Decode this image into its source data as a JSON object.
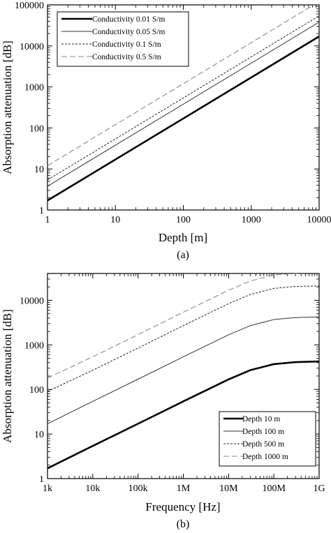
{
  "chart_data": [
    {
      "type": "line",
      "caption": "(a)",
      "xlabel": "Depth [m]",
      "ylabel": "Absorption attenuation [dB]",
      "x_scale": "log",
      "y_scale": "log",
      "xlim": [
        1,
        10000
      ],
      "ylim": [
        1,
        100000
      ],
      "x_ticks": [
        1,
        10,
        100,
        1000,
        10000
      ],
      "x_tick_labels": [
        "1",
        "10",
        "100",
        "1000",
        "10000"
      ],
      "y_ticks": [
        1,
        10,
        100,
        1000,
        10000,
        100000
      ],
      "y_tick_labels": [
        "1",
        "10",
        "100",
        "1000",
        "10000",
        "100000"
      ],
      "grid": false,
      "legend_position": "top-left",
      "series": [
        {
          "name": "Conductivity 0.01 S/m",
          "style": "thick-solid",
          "x": [
            1,
            10000
          ],
          "y": [
            1.7,
            17000
          ]
        },
        {
          "name": "Conductivity 0.05 S/m",
          "style": "thin-solid",
          "x": [
            1,
            10000
          ],
          "y": [
            3.8,
            38000
          ]
        },
        {
          "name": "Conductivity 0.1 S/m",
          "style": "short-dash",
          "x": [
            1,
            10000
          ],
          "y": [
            5.4,
            54000
          ]
        },
        {
          "name": "Conductivity 0.5 S/m",
          "style": "long-dash",
          "x": [
            1,
            10000
          ],
          "y": [
            12,
            120000
          ]
        }
      ]
    },
    {
      "type": "line",
      "caption": "(b)",
      "xlabel": "Frequency [Hz]",
      "ylabel": "Absorption attenuation [dB]",
      "x_scale": "log",
      "y_scale": "log",
      "xlim": [
        1000,
        1000000000
      ],
      "ylim": [
        1,
        40000
      ],
      "x_ticks": [
        1000,
        10000,
        100000,
        1000000,
        10000000,
        100000000,
        1000000000
      ],
      "x_tick_labels": [
        "1k",
        "10k",
        "100k",
        "1M",
        "10M",
        "100M",
        "1G"
      ],
      "y_ticks": [
        1,
        10,
        100,
        1000,
        10000
      ],
      "y_tick_labels": [
        "1",
        "10",
        "100",
        "1000",
        "10000"
      ],
      "grid": false,
      "legend_position": "bottom-right",
      "series": [
        {
          "name": "Depth 10 m",
          "style": "thick-solid",
          "x": [
            1000,
            10000,
            100000,
            1000000,
            10000000,
            30000000,
            100000000,
            300000000,
            1000000000
          ],
          "y": [
            1.7,
            5.4,
            17,
            54,
            168,
            270,
            370,
            410,
            425
          ]
        },
        {
          "name": "Depth 100 m",
          "style": "thin-solid",
          "x": [
            1000,
            10000,
            100000,
            1000000,
            10000000,
            30000000,
            100000000,
            300000000,
            1000000000
          ],
          "y": [
            17,
            54,
            170,
            540,
            1680,
            2700,
            3700,
            4100,
            4250
          ]
        },
        {
          "name": "Depth 500 m",
          "style": "short-dash",
          "x": [
            1000,
            10000,
            100000,
            1000000,
            10000000,
            30000000,
            100000000,
            300000000,
            1000000000
          ],
          "y": [
            90,
            270,
            850,
            2700,
            8400,
            13500,
            18500,
            20500,
            21000
          ]
        },
        {
          "name": "Depth 1000 m",
          "style": "long-dash",
          "x": [
            1000,
            10000,
            100000,
            1000000,
            10000000,
            30000000,
            100000000,
            300000000,
            1000000000
          ],
          "y": [
            180,
            540,
            1700,
            5400,
            16800,
            27000,
            37000,
            40000,
            42000
          ]
        }
      ]
    }
  ]
}
